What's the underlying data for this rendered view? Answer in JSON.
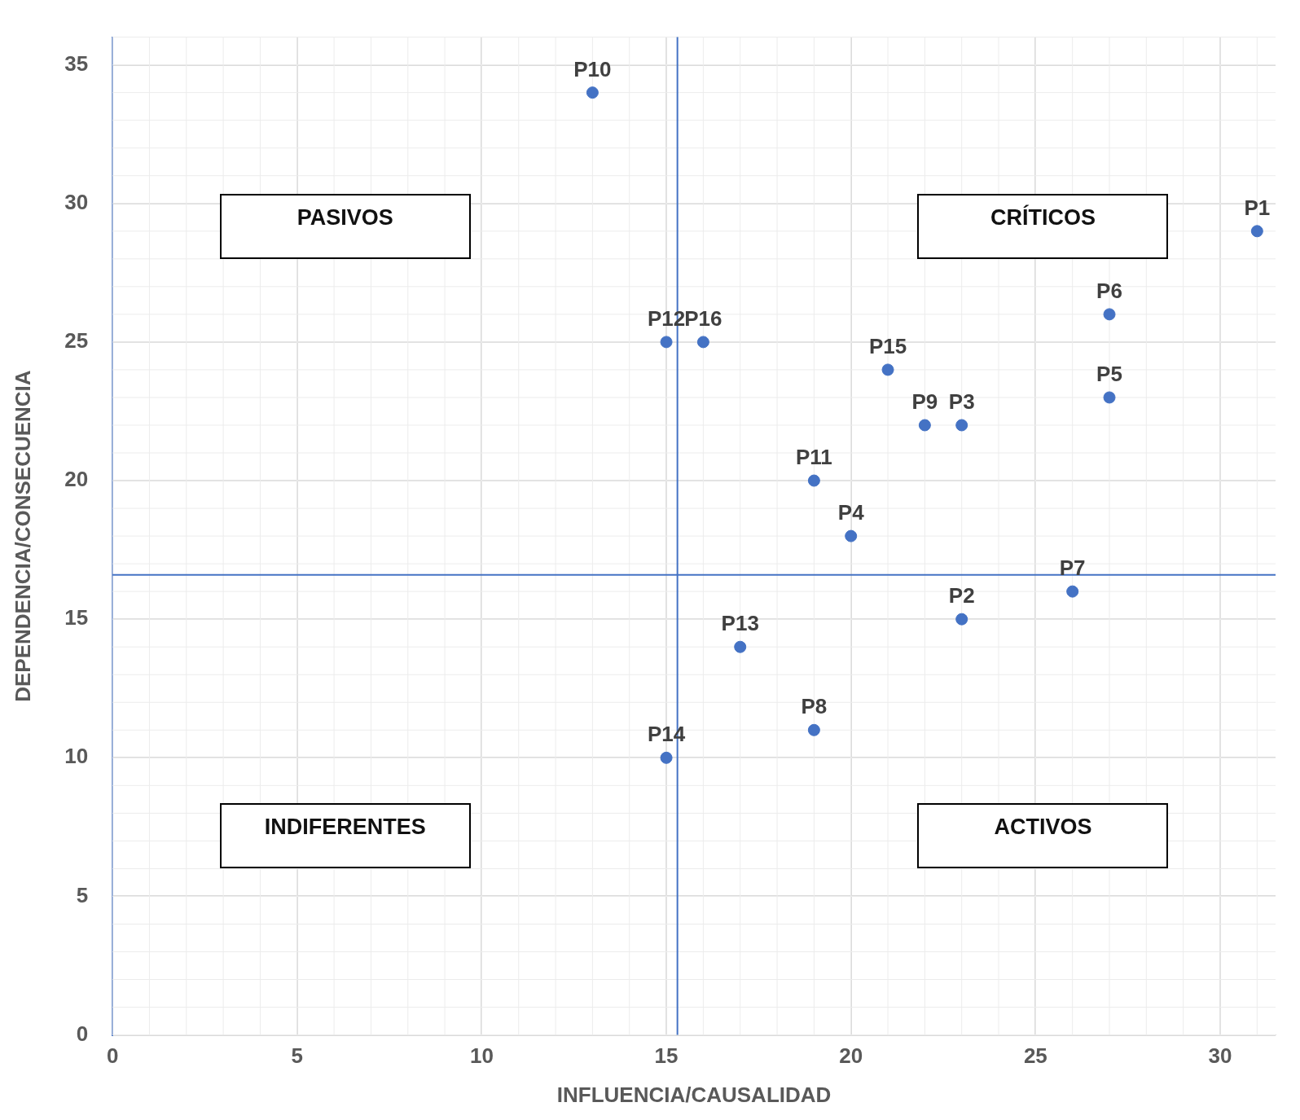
{
  "chart_data": {
    "type": "scatter",
    "xlabel": "INFLUENCIA/CAUSALIDAD",
    "ylabel": "DEPENDENCIA/CONSECUENCIA",
    "x": [
      31,
      23,
      23,
      20,
      27,
      27,
      26,
      19,
      22,
      13,
      19,
      15,
      17,
      15,
      21,
      16
    ],
    "values": [
      29,
      15,
      22,
      18,
      23,
      26,
      16,
      11,
      22,
      34,
      20,
      25,
      14,
      10,
      24,
      25
    ],
    "value_labels": [
      "P1",
      "P2",
      "P3",
      "P4",
      "P5",
      "P6",
      "P7",
      "P8",
      "P9",
      "P10",
      "P11",
      "P12",
      "P13",
      "P14",
      "P15",
      "P16"
    ],
    "color": "#4472c4",
    "marker": "circle",
    "xlim": [
      0,
      31.5
    ],
    "ylim": [
      0,
      36
    ],
    "xticks": [
      0,
      5,
      10,
      15,
      20,
      25,
      30
    ],
    "yticks": [
      0,
      5,
      10,
      15,
      20,
      25,
      30,
      35
    ],
    "grid": true,
    "ref_lines": [
      {
        "axis": "x",
        "value": 15.3,
        "color": "#4472c4"
      },
      {
        "axis": "y",
        "value": 16.6,
        "color": "#4472c4"
      }
    ],
    "annotations": [
      "PASIVOS",
      "CRÍTICOS",
      "INDIFERENTES",
      "ACTIVOS"
    ]
  }
}
